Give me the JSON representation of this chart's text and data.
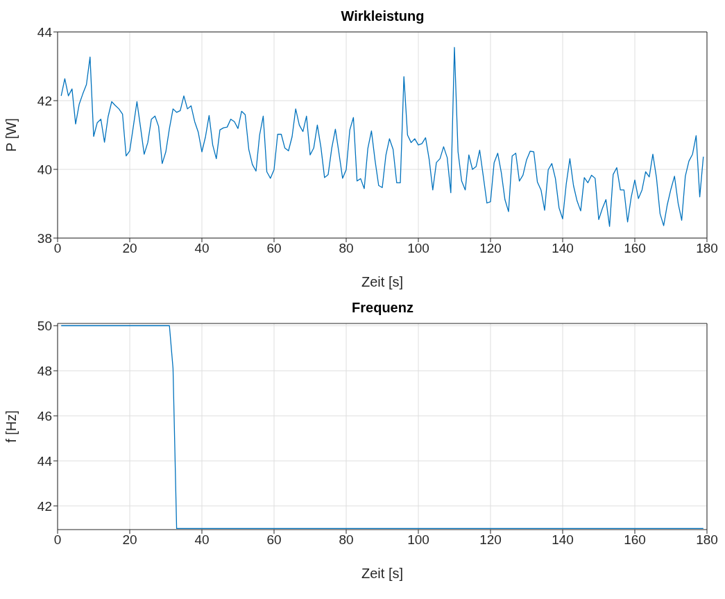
{
  "chart_data": [
    {
      "type": "line",
      "title": "Wirkleistung",
      "xlabel": "Zeit [s]",
      "ylabel": "P [W]",
      "xlim": [
        0,
        180
      ],
      "xticks": [
        0,
        20,
        40,
        60,
        80,
        100,
        120,
        140,
        160,
        180
      ],
      "ylim": [
        38,
        44
      ],
      "yticks": [
        38,
        40,
        42,
        44
      ],
      "grid": true,
      "x": [
        1,
        2,
        3,
        4,
        5,
        6,
        7,
        8,
        9,
        10,
        11,
        12,
        13,
        14,
        15,
        16,
        17,
        18,
        19,
        20,
        21,
        22,
        23,
        24,
        25,
        26,
        27,
        28,
        29,
        30,
        31,
        32,
        33,
        34,
        35,
        36,
        37,
        38,
        39,
        40,
        41,
        42,
        43,
        44,
        45,
        46,
        47,
        48,
        49,
        50,
        51,
        52,
        53,
        54,
        55,
        56,
        57,
        58,
        59,
        60,
        61,
        62,
        63,
        64,
        65,
        66,
        67,
        68,
        69,
        70,
        71,
        72,
        73,
        74,
        75,
        76,
        77,
        78,
        79,
        80,
        81,
        82,
        83,
        84,
        85,
        86,
        87,
        88,
        89,
        90,
        91,
        92,
        93,
        94,
        95,
        96,
        97,
        98,
        99,
        100,
        101,
        102,
        103,
        104,
        105,
        106,
        107,
        108,
        109,
        110,
        111,
        112,
        113,
        114,
        115,
        116,
        117,
        118,
        119,
        120,
        121,
        122,
        123,
        124,
        125,
        126,
        127,
        128,
        129,
        130,
        131,
        132,
        133,
        134,
        135,
        136,
        137,
        138,
        139,
        140,
        141,
        142,
        143,
        144,
        145,
        146,
        147,
        148,
        149,
        150,
        151,
        152,
        153,
        154,
        155,
        156,
        157,
        158,
        159,
        160,
        161,
        162,
        163,
        164,
        165,
        166,
        167,
        168,
        169,
        170,
        171,
        172,
        173,
        174,
        175,
        176,
        177,
        178,
        179
      ],
      "series": [
        {
          "color": "#0072bd",
          "values": [
            42.14,
            42.64,
            42.14,
            42.34,
            41.32,
            41.9,
            42.2,
            42.47,
            43.27,
            40.96,
            41.36,
            41.46,
            40.79,
            41.53,
            41.97,
            41.86,
            41.76,
            41.61,
            40.39,
            40.54,
            41.25,
            41.97,
            41.22,
            40.44,
            40.78,
            41.46,
            41.55,
            41.25,
            40.17,
            40.51,
            41.19,
            41.76,
            41.66,
            41.71,
            42.14,
            41.76,
            41.85,
            41.39,
            41.08,
            40.51,
            40.95,
            41.57,
            40.71,
            40.31,
            41.15,
            41.21,
            41.23,
            41.46,
            41.39,
            41.19,
            41.69,
            41.59,
            40.58,
            40.14,
            39.95,
            41.0,
            41.55,
            39.93,
            39.74,
            39.99,
            41.02,
            41.02,
            40.62,
            40.54,
            40.95,
            41.76,
            41.29,
            41.1,
            41.55,
            40.42,
            40.62,
            41.29,
            40.64,
            39.76,
            39.85,
            40.62,
            41.17,
            40.47,
            39.74,
            39.99,
            41.15,
            41.51,
            39.66,
            39.73,
            39.44,
            40.61,
            41.12,
            40.26,
            39.53,
            39.47,
            40.41,
            40.89,
            40.58,
            39.61,
            39.61,
            42.7,
            41.0,
            40.78,
            40.89,
            40.71,
            40.75,
            40.92,
            40.29,
            39.4,
            40.2,
            40.31,
            40.66,
            40.34,
            39.32,
            43.55,
            40.51,
            39.66,
            39.4,
            40.42,
            40.0,
            40.08,
            40.56,
            39.8,
            39.02,
            39.06,
            40.19,
            40.47,
            39.9,
            39.12,
            38.77,
            40.39,
            40.47,
            39.66,
            39.83,
            40.28,
            40.53,
            40.51,
            39.63,
            39.4,
            38.81,
            39.99,
            40.17,
            39.73,
            38.88,
            38.56,
            39.58,
            40.31,
            39.53,
            39.08,
            38.79,
            39.76,
            39.61,
            39.83,
            39.74,
            38.54,
            38.86,
            39.12,
            38.34,
            39.85,
            40.05,
            39.4,
            39.4,
            38.47,
            39.19,
            39.69,
            39.15,
            39.4,
            39.93,
            39.78,
            40.44,
            39.76,
            38.71,
            38.36,
            38.97,
            39.42,
            39.8,
            39.02,
            38.52,
            39.8,
            40.24,
            40.44,
            40.98,
            39.2,
            40.37
          ]
        }
      ]
    },
    {
      "type": "line",
      "title": "Frequenz",
      "xlabel": "Zeit [s]",
      "ylabel": "f [Hz]",
      "xlim": [
        0,
        180
      ],
      "xticks": [
        0,
        20,
        40,
        60,
        80,
        100,
        120,
        140,
        160,
        180
      ],
      "ylim": [
        40.95,
        50.1
      ],
      "yticks": [
        42,
        44,
        46,
        48,
        50
      ],
      "grid": true,
      "x": [
        1,
        31,
        32,
        33,
        179
      ],
      "series": [
        {
          "color": "#0072bd",
          "values": [
            50,
            50,
            48.1,
            41,
            41
          ]
        }
      ]
    }
  ]
}
